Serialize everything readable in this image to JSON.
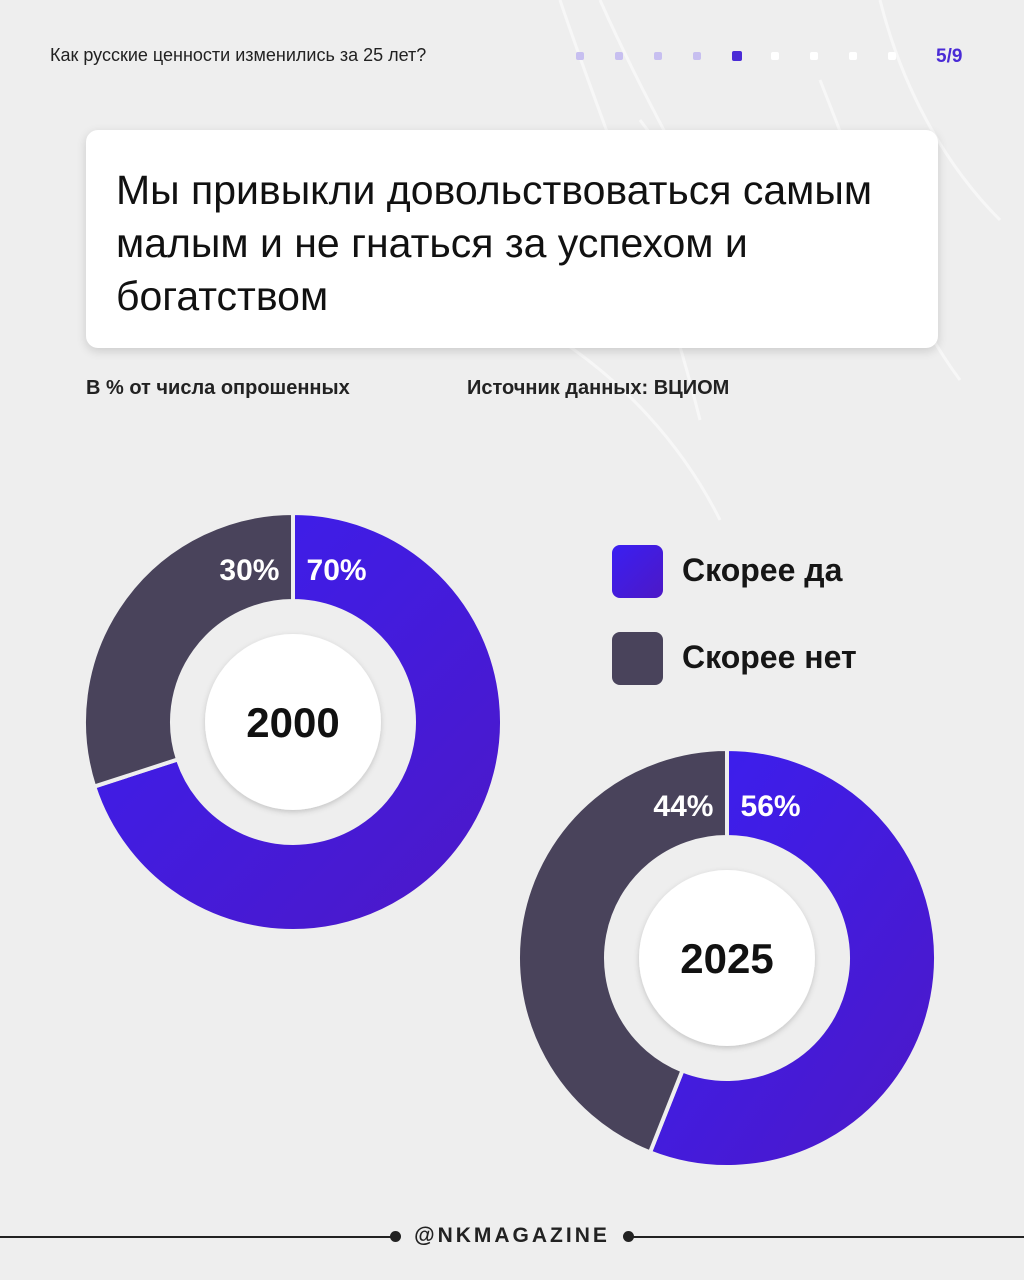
{
  "header": {
    "title": "Как русские ценности изменились за 25 лет?",
    "page_indicator": "5/9",
    "progress": {
      "total": 9,
      "current": 5
    }
  },
  "headline": "Мы привыкли довольствоваться самым малым и не гнаться за успехом и богатством",
  "meta": {
    "unit_note": "В % от числа опрошенных",
    "source": "Источник данных: ВЦИОМ"
  },
  "colors": {
    "yes_start": "#3a1ff2",
    "yes_end": "#4d18c6",
    "no": "#49435b",
    "accent": "#4a2bd6"
  },
  "chart_data": [
    {
      "type": "pie",
      "title": "2000",
      "slices": [
        {
          "label": "Скорее да",
          "value": 70,
          "display": "70%"
        },
        {
          "label": "Скорее нет",
          "value": 30,
          "display": "30%"
        }
      ]
    },
    {
      "type": "pie",
      "title": "2025",
      "slices": [
        {
          "label": "Скорее да",
          "value": 56,
          "display": "56%"
        },
        {
          "label": "Скорее нет",
          "value": 44,
          "display": "44%"
        }
      ]
    }
  ],
  "legend": [
    {
      "label": "Скорее да"
    },
    {
      "label": "Скорее нет"
    }
  ],
  "footer": {
    "handle": "@NKMAGAZINE"
  }
}
